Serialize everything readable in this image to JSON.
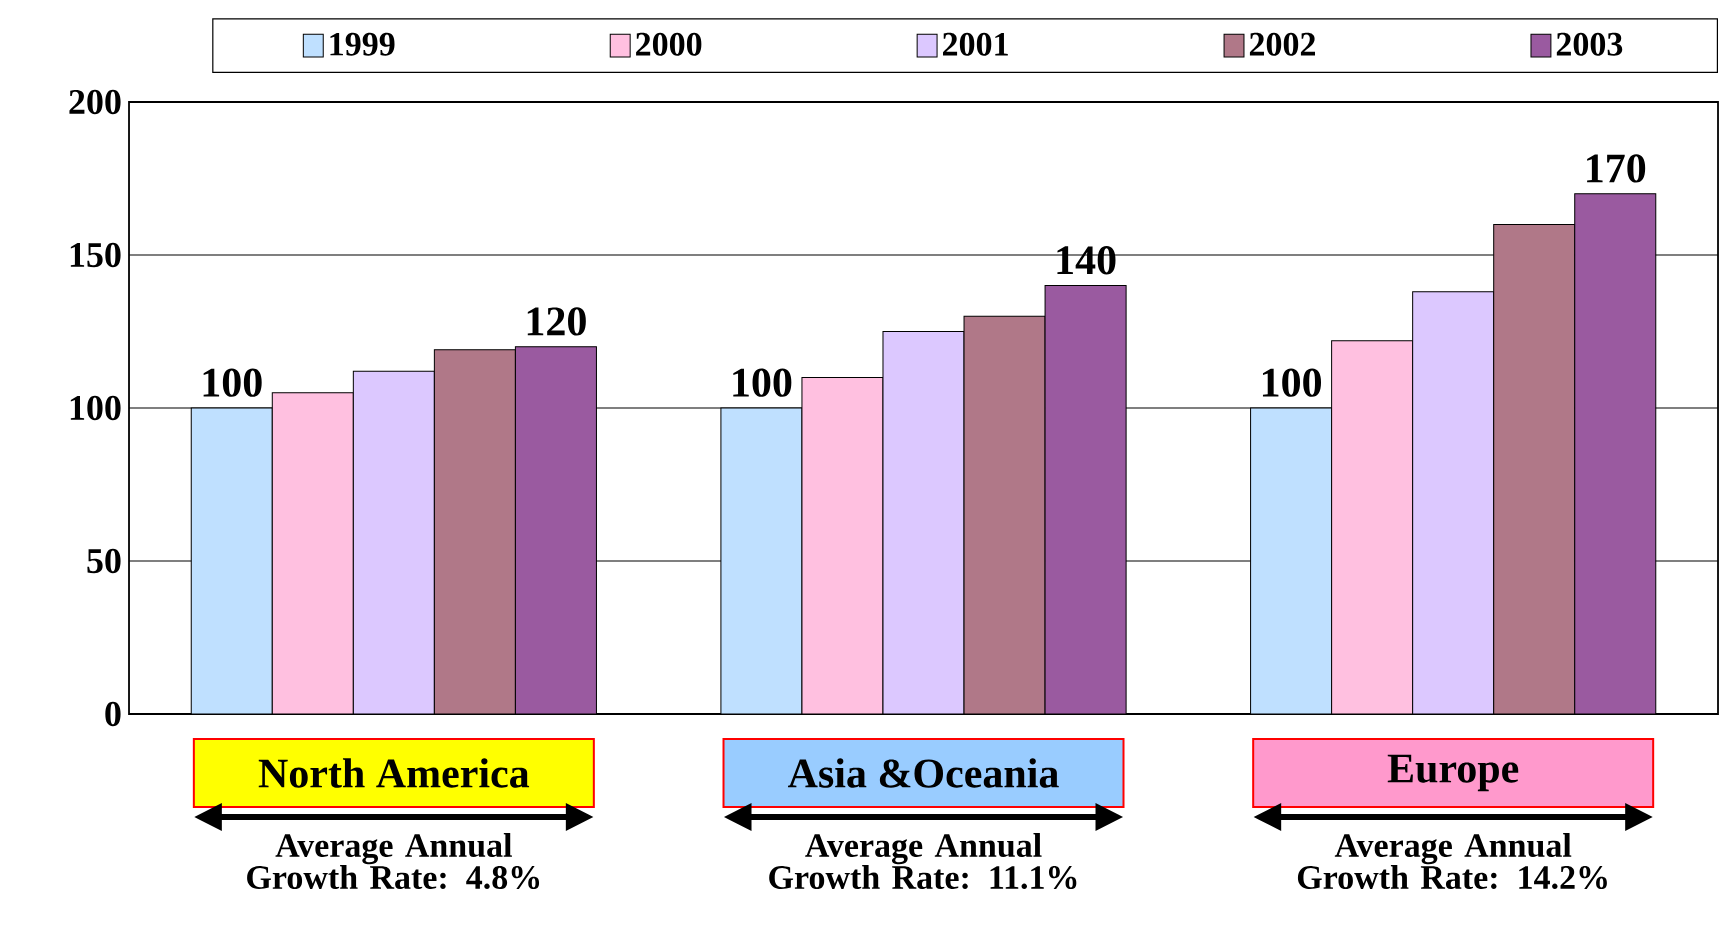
{
  "chart_data": {
    "type": "bar",
    "categories": [
      "North America",
      "Asia &Oceania",
      "Europe"
    ],
    "series": [
      {
        "name": "1999",
        "color": "#bfe0ff",
        "values": [
          100,
          100,
          100
        ],
        "value_labels": [
          "100",
          "100",
          "100"
        ]
      },
      {
        "name": "2000",
        "color": "#ffc0e0",
        "values": [
          105,
          110,
          122
        ]
      },
      {
        "name": "2001",
        "color": "#dcc8ff",
        "values": [
          112,
          125,
          138
        ]
      },
      {
        "name": "2002",
        "color": "#b07888",
        "values": [
          119,
          130,
          160
        ]
      },
      {
        "name": "2003",
        "color": "#9a5aa0",
        "values": [
          120,
          140,
          170
        ],
        "value_labels": [
          "120",
          "140",
          "170"
        ]
      }
    ],
    "ylim": [
      0,
      200
    ],
    "yticks": [
      0,
      50,
      100,
      150,
      200
    ],
    "grid": "y",
    "legend": "top",
    "annotations": [
      "Average Annual Growth Rate: 4.8%",
      "Average Annual Growth Rate: 11.1%",
      "Average Annual Growth Rate: 14.2%"
    ]
  }
}
